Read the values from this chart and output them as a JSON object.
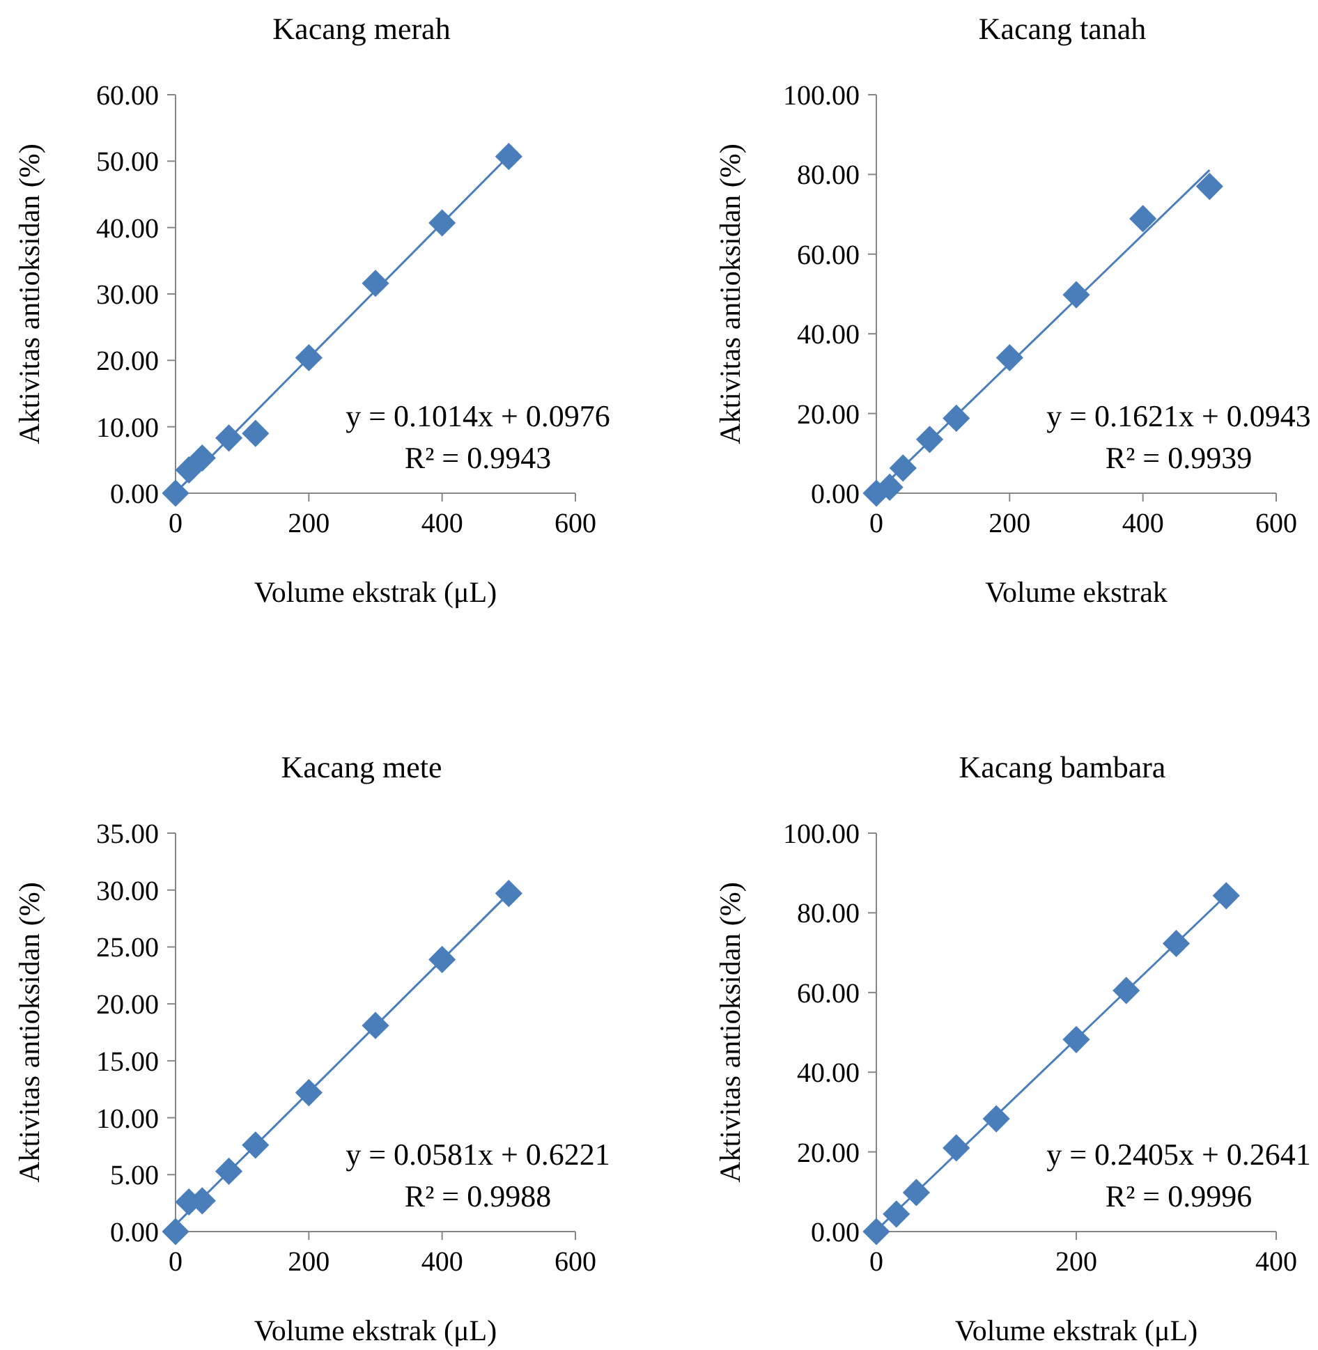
{
  "chart_data": [
    {
      "type": "scatter",
      "title": "Kacang merah",
      "xlabel": "Volume ekstrak (μL)",
      "ylabel": "Aktivitas antioksidan (%)",
      "marker": "diamond",
      "grid": false,
      "xlim": [
        0,
        600
      ],
      "xticks": [
        0,
        200,
        400,
        600
      ],
      "ylim": [
        0,
        60
      ],
      "yticks": [
        {
          "value": 0,
          "label": "0.00"
        },
        {
          "value": 10,
          "label": "10.00"
        },
        {
          "value": 20,
          "label": "20.00"
        },
        {
          "value": 30,
          "label": "30.00"
        },
        {
          "value": 40,
          "label": "40.00"
        },
        {
          "value": 50,
          "label": "50.00"
        },
        {
          "value": 60,
          "label": "60.00"
        }
      ],
      "annotations": [
        "y = 0.1014x + 0.0976",
        "R² = 0.9943"
      ],
      "series": [
        {
          "color": "#4a7ebb",
          "x": [
            0,
            20,
            40,
            80,
            120,
            200,
            300,
            400,
            500
          ],
          "values": [
            0,
            3.5,
            5.3,
            8.3,
            9.0,
            20.4,
            31.6,
            40.7,
            50.7
          ]
        },
        {
          "type": "line",
          "color": "#4a7ebb",
          "marker": "none",
          "x": [
            0,
            500
          ],
          "values": [
            0.1,
            50.8
          ]
        }
      ]
    },
    {
      "type": "scatter",
      "title": "Kacang tanah",
      "xlabel": "Volume ekstrak",
      "ylabel": "Aktivitas antioksidan (%)",
      "marker": "diamond",
      "grid": false,
      "xlim": [
        0,
        600
      ],
      "xticks": [
        0,
        200,
        400,
        600
      ],
      "ylim": [
        0,
        100
      ],
      "yticks": [
        {
          "value": 0,
          "label": "0.00"
        },
        {
          "value": 20,
          "label": "20.00"
        },
        {
          "value": 40,
          "label": "40.00"
        },
        {
          "value": 60,
          "label": "60.00"
        },
        {
          "value": 80,
          "label": "80.00"
        },
        {
          "value": 100,
          "label": "100.00"
        }
      ],
      "annotations": [
        "y = 0.1621x + 0.0943",
        "R² = 0.9939"
      ],
      "series": [
        {
          "color": "#4a7ebb",
          "x": [
            0,
            20,
            40,
            80,
            120,
            200,
            300,
            400,
            500
          ],
          "values": [
            0,
            1.5,
            6.3,
            13.5,
            18.8,
            34,
            49.8,
            68.9,
            77
          ]
        },
        {
          "type": "line",
          "color": "#4a7ebb",
          "marker": "none",
          "x": [
            0,
            500
          ],
          "values": [
            0.1,
            81.1
          ]
        }
      ]
    },
    {
      "type": "scatter",
      "title": "Kacang mete",
      "xlabel": "Volume ekstrak (μL)",
      "ylabel": "Aktivitas antioksidan (%)",
      "marker": "diamond",
      "grid": false,
      "xlim": [
        0,
        600
      ],
      "xticks": [
        0,
        200,
        400,
        600
      ],
      "ylim": [
        0,
        35
      ],
      "yticks": [
        {
          "value": 0,
          "label": "0.00"
        },
        {
          "value": 5,
          "label": "5.00"
        },
        {
          "value": 10,
          "label": "10.00"
        },
        {
          "value": 15,
          "label": "15.00"
        },
        {
          "value": 20,
          "label": "20.00"
        },
        {
          "value": 25,
          "label": "25.00"
        },
        {
          "value": 30,
          "label": "30.00"
        },
        {
          "value": 35,
          "label": "35.00"
        }
      ],
      "annotations": [
        "y = 0.0581x + 0.6221",
        "R² = 0.9988"
      ],
      "series": [
        {
          "color": "#4a7ebb",
          "x": [
            0,
            20,
            40,
            80,
            120,
            200,
            300,
            400,
            500
          ],
          "values": [
            0,
            2.6,
            2.7,
            5.3,
            7.6,
            12.2,
            18.1,
            23.9,
            29.7
          ]
        },
        {
          "type": "line",
          "color": "#4a7ebb",
          "marker": "none",
          "x": [
            0,
            500
          ],
          "values": [
            0.6,
            29.7
          ]
        }
      ]
    },
    {
      "type": "scatter",
      "title": "Kacang bambara",
      "xlabel": "Volume ekstrak (μL)",
      "ylabel": "Aktivitas antioksidan (%)",
      "marker": "diamond",
      "grid": false,
      "xlim": [
        0,
        400
      ],
      "xticks": [
        0,
        200,
        400
      ],
      "ylim": [
        0,
        100
      ],
      "yticks": [
        {
          "value": 0,
          "label": "0.00"
        },
        {
          "value": 20,
          "label": "20.00"
        },
        {
          "value": 40,
          "label": "40.00"
        },
        {
          "value": 60,
          "label": "60.00"
        },
        {
          "value": 80,
          "label": "80.00"
        },
        {
          "value": 100,
          "label": "100.00"
        }
      ],
      "annotations": [
        "y = 0.2405x + 0.2641",
        "R² = 0.9996"
      ],
      "series": [
        {
          "color": "#4a7ebb",
          "x": [
            0,
            20,
            40,
            80,
            120,
            200,
            250,
            300,
            350
          ],
          "values": [
            0,
            4.4,
            9.8,
            21,
            28.3,
            48.2,
            60.5,
            72.3,
            84.3
          ]
        },
        {
          "type": "line",
          "color": "#4a7ebb",
          "marker": "none",
          "x": [
            0,
            350
          ],
          "values": [
            0.3,
            84.4
          ]
        }
      ]
    }
  ]
}
